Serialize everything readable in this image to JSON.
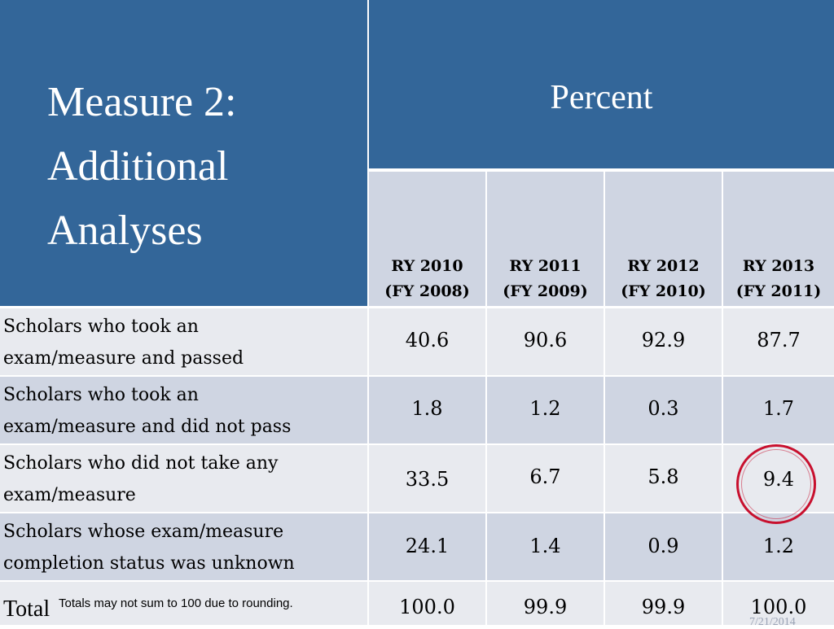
{
  "title_lines": [
    "Measure 2:",
    "Additional",
    "Analyses"
  ],
  "percent_header": "Percent",
  "columns": [
    {
      "line1": "RY 2010",
      "line2": "(FY 2008)"
    },
    {
      "line1": "RY 2011",
      "line2": "(FY 2009)"
    },
    {
      "line1": "RY 2012",
      "line2": "(FY 2010)"
    },
    {
      "line1": "RY 2013",
      "line2": "(FY 2011)"
    }
  ],
  "rows": [
    {
      "label_lines": [
        "Scholars who took an",
        "exam/measure and passed"
      ],
      "values": [
        "40.6",
        "90.6",
        "92.9",
        "87.7"
      ]
    },
    {
      "label_lines": [
        "Scholars who took an",
        "exam/measure and did not pass"
      ],
      "values": [
        "1.8",
        "1.2",
        "0.3",
        "1.7"
      ]
    },
    {
      "label_lines": [
        "Scholars who did not take any",
        "exam/measure"
      ],
      "values": [
        "33.5",
        "6.7",
        "5.8",
        "9.4"
      ]
    },
    {
      "label_lines": [
        "Scholars whose exam/measure",
        "completion status was unknown"
      ],
      "values": [
        "24.1",
        "1.4",
        "0.9",
        "1.2"
      ]
    }
  ],
  "total": {
    "label": "Total",
    "note": "Totals may not sum to 100 due to rounding.",
    "values": [
      "100.0",
      "99.9",
      "99.9",
      "100.0"
    ]
  },
  "colors": {
    "header_blue": "#336699",
    "row_light": "#e8eaef",
    "row_dark": "#cfd5e2",
    "highlight_circle": "#c8102e"
  },
  "footer_date": "7/21/2014"
}
